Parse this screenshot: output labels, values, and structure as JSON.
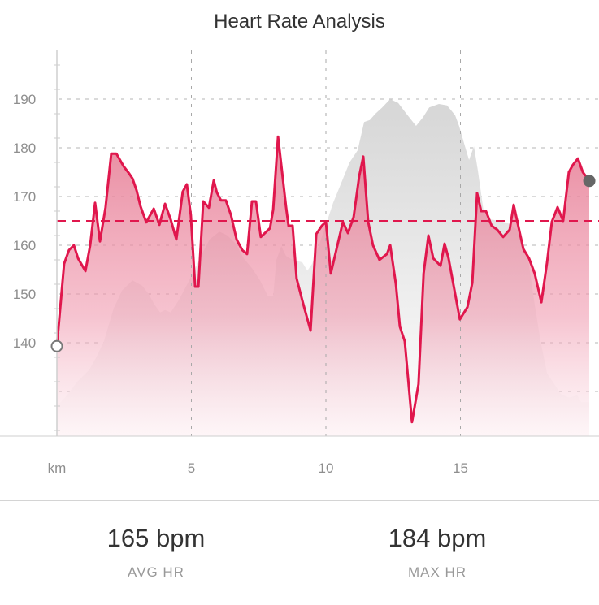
{
  "colors": {
    "line": "#e0174d",
    "fill": "#e8859f",
    "profile": "#d6d6d6",
    "grid": "#b5b5b5",
    "end_marker": "#666666"
  },
  "chart_data": {
    "type": "line",
    "title": "Heart Rate Analysis",
    "xlabel": "km",
    "ylabel": "",
    "xlim": [
      0,
      19.8
    ],
    "ylim": [
      120.8,
      199.3
    ],
    "grid": true,
    "yticks": [
      130,
      140,
      150,
      160,
      170,
      180,
      190
    ],
    "ytick_labels": [
      "140",
      "150",
      "160",
      "170",
      "180",
      "190"
    ],
    "ytick_label_values": [
      140,
      150,
      160,
      170,
      180,
      190
    ],
    "xticks": [
      0,
      5,
      10,
      15
    ],
    "xtick_labels": [
      "km",
      "5",
      "10",
      "15"
    ],
    "average_line": 165,
    "series": [
      {
        "name": "Heart rate",
        "points": [
          [
            0,
            139.3
          ],
          [
            0.27,
            156.2
          ],
          [
            0.45,
            159
          ],
          [
            0.63,
            160
          ],
          [
            0.79,
            157.3
          ],
          [
            1.06,
            154.7
          ],
          [
            1.24,
            160
          ],
          [
            1.42,
            168.7
          ],
          [
            1.6,
            160.8
          ],
          [
            1.81,
            167.8
          ],
          [
            2.02,
            178.8
          ],
          [
            2.21,
            178.8
          ],
          [
            2.48,
            176.2
          ],
          [
            2.69,
            174.7
          ],
          [
            2.81,
            173.7
          ],
          [
            2.96,
            171.3
          ],
          [
            3.11,
            168
          ],
          [
            3.32,
            164.7
          ],
          [
            3.6,
            167.5
          ],
          [
            3.81,
            164.2
          ],
          [
            4.02,
            168.5
          ],
          [
            4.23,
            165.3
          ],
          [
            4.44,
            161.2
          ],
          [
            4.68,
            171
          ],
          [
            4.83,
            172.5
          ],
          [
            4.98,
            166.2
          ],
          [
            5.14,
            151.5
          ],
          [
            5.26,
            151.5
          ],
          [
            5.44,
            169
          ],
          [
            5.65,
            167.7
          ],
          [
            5.83,
            173.3
          ],
          [
            5.95,
            170.8
          ],
          [
            6.1,
            169.2
          ],
          [
            6.28,
            169.2
          ],
          [
            6.47,
            166.2
          ],
          [
            6.68,
            161.2
          ],
          [
            6.89,
            159
          ],
          [
            7.07,
            158.2
          ],
          [
            7.25,
            169
          ],
          [
            7.4,
            169
          ],
          [
            7.58,
            161.7
          ],
          [
            7.92,
            163.5
          ],
          [
            8.04,
            167.3
          ],
          [
            8.22,
            182.3
          ],
          [
            8.52,
            167.8
          ],
          [
            8.61,
            164
          ],
          [
            8.76,
            164
          ],
          [
            8.91,
            153.2
          ],
          [
            9.12,
            148.7
          ],
          [
            9.43,
            142.5
          ],
          [
            9.64,
            162.3
          ],
          [
            9.85,
            164
          ],
          [
            10,
            164.8
          ],
          [
            10.18,
            154.2
          ],
          [
            10.63,
            164.8
          ],
          [
            10.82,
            162.5
          ],
          [
            11.03,
            165.8
          ],
          [
            11.24,
            174.2
          ],
          [
            11.39,
            178.2
          ],
          [
            11.57,
            164.8
          ],
          [
            11.75,
            160
          ],
          [
            11.99,
            157
          ],
          [
            12.27,
            158.2
          ],
          [
            12.39,
            160
          ],
          [
            12.6,
            152
          ],
          [
            12.75,
            143.3
          ],
          [
            12.93,
            140.3
          ],
          [
            13.2,
            123.7
          ],
          [
            13.44,
            131.5
          ],
          [
            13.63,
            154.2
          ],
          [
            13.81,
            162
          ],
          [
            13.99,
            157.3
          ],
          [
            14.26,
            155.8
          ],
          [
            14.41,
            160.3
          ],
          [
            14.56,
            157.3
          ],
          [
            14.98,
            144.8
          ],
          [
            15.26,
            147.3
          ],
          [
            15.44,
            152.3
          ],
          [
            15.62,
            170.7
          ],
          [
            15.77,
            167
          ],
          [
            15.95,
            167
          ],
          [
            16.16,
            164
          ],
          [
            16.37,
            163.2
          ],
          [
            16.59,
            161.7
          ],
          [
            16.83,
            163.2
          ],
          [
            16.98,
            168.3
          ],
          [
            17.16,
            163.7
          ],
          [
            17.34,
            159.2
          ],
          [
            17.55,
            157.3
          ],
          [
            17.76,
            154.2
          ],
          [
            18.01,
            148.3
          ],
          [
            18.22,
            156.5
          ],
          [
            18.4,
            164.8
          ],
          [
            18.61,
            167.8
          ],
          [
            18.82,
            165
          ],
          [
            19.03,
            175
          ],
          [
            19.18,
            176.5
          ],
          [
            19.37,
            177.8
          ],
          [
            19.55,
            175
          ],
          [
            19.79,
            173.2
          ]
        ]
      },
      {
        "name": "Elevation profile (unlabeled, drawn in axis units)",
        "points": [
          [
            0,
            127
          ],
          [
            0.3,
            128.7
          ],
          [
            0.76,
            132
          ],
          [
            1.21,
            134.5
          ],
          [
            1.51,
            137.5
          ],
          [
            1.75,
            140.3
          ],
          [
            2.11,
            147
          ],
          [
            2.42,
            150.7
          ],
          [
            2.81,
            152.8
          ],
          [
            3.17,
            151.7
          ],
          [
            3.41,
            150
          ],
          [
            3.63,
            147.8
          ],
          [
            3.84,
            146.2
          ],
          [
            4.02,
            146.7
          ],
          [
            4.23,
            146.2
          ],
          [
            4.53,
            148.7
          ],
          [
            4.77,
            151.2
          ],
          [
            5.08,
            154.5
          ],
          [
            5.44,
            158.7
          ],
          [
            5.68,
            161.2
          ],
          [
            6.04,
            162.8
          ],
          [
            6.34,
            162
          ],
          [
            6.65,
            160.3
          ],
          [
            6.95,
            157.3
          ],
          [
            7.25,
            155.3
          ],
          [
            7.55,
            152.8
          ],
          [
            7.85,
            149.5
          ],
          [
            8.04,
            149.5
          ],
          [
            8.16,
            157
          ],
          [
            8.34,
            159.8
          ],
          [
            8.52,
            157.8
          ],
          [
            8.76,
            157
          ],
          [
            9.12,
            156.5
          ],
          [
            9.31,
            154.8
          ],
          [
            9.49,
            156.2
          ],
          [
            9.76,
            160.3
          ],
          [
            9.97,
            163.7
          ],
          [
            10.27,
            168.7
          ],
          [
            10.57,
            172.8
          ],
          [
            10.88,
            177
          ],
          [
            11.18,
            179.5
          ],
          [
            11.42,
            185.3
          ],
          [
            11.63,
            185.7
          ],
          [
            11.84,
            187
          ],
          [
            12.08,
            188.2
          ],
          [
            12.39,
            190
          ],
          [
            12.69,
            189.2
          ],
          [
            12.99,
            187
          ],
          [
            13.35,
            184.5
          ],
          [
            13.6,
            186.2
          ],
          [
            13.84,
            188.3
          ],
          [
            14.2,
            189
          ],
          [
            14.5,
            188.7
          ],
          [
            14.8,
            186.7
          ],
          [
            14.95,
            184.5
          ],
          [
            15.17,
            180.3
          ],
          [
            15.32,
            177.5
          ],
          [
            15.5,
            180.3
          ],
          [
            15.65,
            175.3
          ],
          [
            15.86,
            167
          ],
          [
            16.1,
            165.3
          ],
          [
            16.47,
            165
          ],
          [
            16.77,
            164.5
          ],
          [
            17.22,
            162.8
          ],
          [
            17.52,
            157
          ],
          [
            17.76,
            147.8
          ],
          [
            17.98,
            140.3
          ],
          [
            18.22,
            133.7
          ],
          [
            18.43,
            132
          ],
          [
            18.73,
            129.5
          ],
          [
            19.03,
            128.7
          ],
          [
            19.34,
            129.2
          ],
          [
            19.49,
            127.8
          ],
          [
            19.79,
            127.8
          ]
        ]
      }
    ]
  },
  "stats": [
    {
      "value": "165 bpm",
      "label": "AVG HR"
    },
    {
      "value": "184 bpm",
      "label": "MAX HR"
    }
  ]
}
